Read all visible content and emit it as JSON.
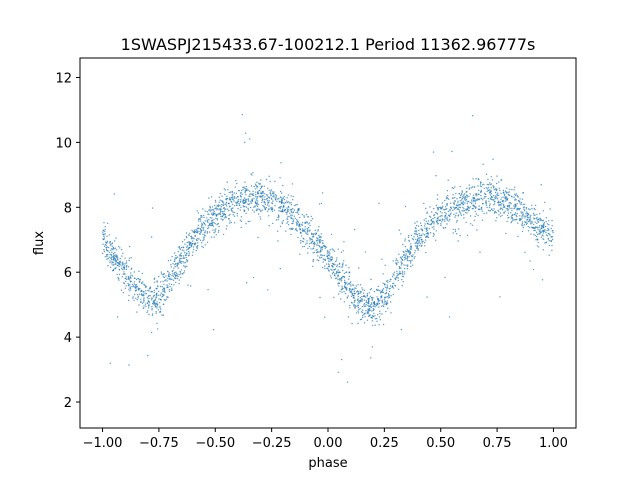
{
  "chart_data": {
    "type": "scatter",
    "title": "1SWASPJ215433.67-100212.1 Period 11362.96777s",
    "xlabel": "phase",
    "ylabel": "flux",
    "xlim": [
      -1.1,
      1.1
    ],
    "ylim": [
      1.2,
      12.6
    ],
    "xticks": [
      -1.0,
      -0.75,
      -0.5,
      -0.25,
      0.0,
      0.25,
      0.5,
      0.75,
      1.0
    ],
    "xtick_labels": [
      "−1.00",
      "−0.75",
      "−0.50",
      "−0.25",
      "0.00",
      "0.25",
      "0.50",
      "0.75",
      "1.00"
    ],
    "yticks": [
      2,
      4,
      6,
      8,
      10,
      12
    ],
    "ytick_labels": [
      "2",
      "4",
      "6",
      "8",
      "10",
      "12"
    ],
    "grid": false,
    "legend": "none",
    "marker_color": "#1f77b4",
    "series": [
      {
        "x": [
          -1.0,
          -0.95,
          -0.9,
          -0.85,
          -0.8,
          -0.75,
          -0.7,
          -0.65,
          -0.6,
          -0.55,
          -0.5,
          -0.45,
          -0.4,
          -0.35,
          -0.3,
          -0.25,
          -0.2,
          -0.15,
          -0.1,
          -0.05,
          0.0,
          0.05,
          0.1,
          0.15,
          0.2,
          0.25,
          0.3,
          0.35,
          0.4,
          0.45,
          0.5,
          0.55,
          0.6,
          0.65,
          0.7,
          0.75,
          0.8,
          0.85,
          0.9,
          0.95,
          1.0
        ],
        "y": [
          7.0,
          6.5,
          6.0,
          5.5,
          5.1,
          5.3,
          5.8,
          6.4,
          7.0,
          7.4,
          7.7,
          8.0,
          8.2,
          8.3,
          8.3,
          8.2,
          8.0,
          7.7,
          7.3,
          6.9,
          6.4,
          5.9,
          5.4,
          5.0,
          4.9,
          5.3,
          5.9,
          6.5,
          7.0,
          7.4,
          7.7,
          7.9,
          8.1,
          8.2,
          8.3,
          8.2,
          8.1,
          7.9,
          7.6,
          7.3,
          7.1
        ]
      }
    ]
  }
}
